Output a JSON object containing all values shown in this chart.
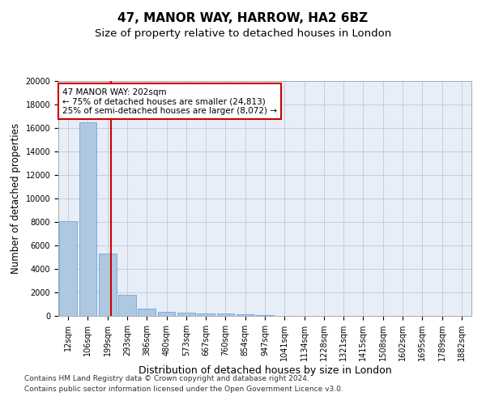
{
  "title": "47, MANOR WAY, HARROW, HA2 6BZ",
  "subtitle": "Size of property relative to detached houses in London",
  "xlabel": "Distribution of detached houses by size in London",
  "ylabel": "Number of detached properties",
  "bar_labels": [
    "12sqm",
    "106sqm",
    "199sqm",
    "293sqm",
    "386sqm",
    "480sqm",
    "573sqm",
    "667sqm",
    "760sqm",
    "854sqm",
    "947sqm",
    "1041sqm",
    "1134sqm",
    "1228sqm",
    "1321sqm",
    "1415sqm",
    "1508sqm",
    "1602sqm",
    "1695sqm",
    "1789sqm",
    "1882sqm"
  ],
  "bar_values": [
    8100,
    16500,
    5300,
    1800,
    650,
    350,
    270,
    200,
    200,
    150,
    60,
    30,
    15,
    10,
    5,
    5,
    3,
    2,
    2,
    1,
    1
  ],
  "bar_color": "#aec8e0",
  "bar_edge_color": "#5b9bd5",
  "ylim": [
    0,
    20000
  ],
  "yticks": [
    0,
    2000,
    4000,
    6000,
    8000,
    10000,
    12000,
    14000,
    16000,
    18000,
    20000
  ],
  "vline_x_index": 2.18,
  "vline_color": "#cc0000",
  "annotation_line1": "47 MANOR WAY: 202sqm",
  "annotation_line2": "← 75% of detached houses are smaller (24,813)",
  "annotation_line3": "25% of semi-detached houses are larger (8,072) →",
  "annotation_box_edgecolor": "#cc0000",
  "annotation_text_color": "#000000",
  "grid_color": "#c0c8d8",
  "background_color": "#e8eef8",
  "footnote1": "Contains HM Land Registry data © Crown copyright and database right 2024.",
  "footnote2": "Contains public sector information licensed under the Open Government Licence v3.0.",
  "title_fontsize": 11,
  "subtitle_fontsize": 9.5,
  "xlabel_fontsize": 9,
  "ylabel_fontsize": 8.5,
  "tick_fontsize": 7,
  "annotation_fontsize": 7.5,
  "footnote_fontsize": 6.5
}
